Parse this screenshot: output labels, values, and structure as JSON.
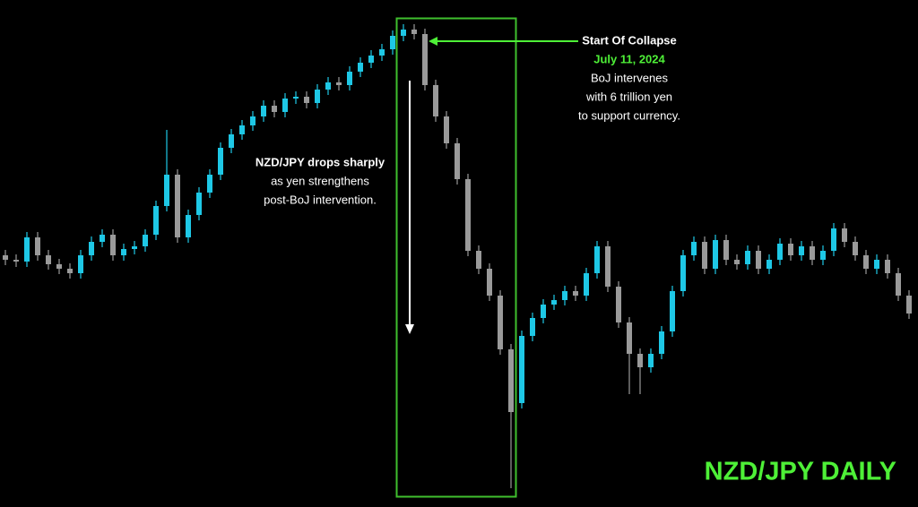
{
  "chart_data": {
    "type": "candlestick",
    "title": "NZD/JPY DAILY",
    "categories": [
      null,
      null,
      null,
      null,
      null,
      null,
      null,
      null,
      null,
      null,
      null,
      null,
      null,
      null,
      null,
      null,
      null,
      null,
      null,
      null,
      null,
      null,
      null,
      null,
      null,
      null,
      null,
      null,
      null,
      null,
      null,
      null,
      null,
      null,
      null,
      null,
      null,
      null,
      null,
      null,
      null,
      null,
      null,
      null,
      null,
      null,
      null,
      null,
      null,
      null,
      null,
      null,
      null,
      null,
      null,
      null,
      null,
      null,
      null,
      null,
      null,
      null,
      null,
      null,
      null,
      null,
      null,
      null,
      null,
      null,
      null,
      null,
      null,
      null,
      null,
      null,
      null,
      null,
      null,
      null,
      null,
      null,
      null,
      null,
      null
    ],
    "open": [
      92.875,
      92.75,
      92.7,
      93.375,
      92.875,
      92.625,
      92.5,
      92.375,
      92.875,
      93.25,
      93.45,
      92.875,
      93.05,
      93.125,
      93.45,
      94.25,
      95.125,
      93.375,
      94,
      94.625,
      95.125,
      95.875,
      96.25,
      96.5,
      96.75,
      97.05,
      96.875,
      97.25,
      97.3,
      97.125,
      97.5,
      97.7,
      97.625,
      98,
      98.25,
      98.45,
      98.625,
      99,
      99.175,
      99.05,
      97.625,
      96.75,
      96,
      95,
      93,
      92.5,
      91.75,
      90.25,
      88.75,
      90.625,
      91.125,
      91.5,
      91.625,
      91.875,
      91.75,
      92.375,
      93.125,
      92,
      91,
      90.125,
      89.75,
      90.125,
      90.75,
      91.875,
      92.875,
      93.25,
      92.5,
      93.3,
      92.75,
      92.625,
      93,
      92.5,
      92.75,
      93.2,
      92.875,
      93.125,
      92.75,
      93,
      93.625,
      93.25,
      92.875,
      92.5,
      92.75,
      92.375,
      91.75
    ],
    "high": [
      93.025,
      92.9,
      93.525,
      93.525,
      93.025,
      92.775,
      92.65,
      93.025,
      93.4,
      93.6,
      93.6,
      93.2,
      93.275,
      93.6,
      94.4,
      96.375,
      95.275,
      94.15,
      94.775,
      95.275,
      96.025,
      96.4,
      96.65,
      96.9,
      97.2,
      97.2,
      97.4,
      97.45,
      97.45,
      97.65,
      97.85,
      97.85,
      98.15,
      98.4,
      98.6,
      98.775,
      99.15,
      99.325,
      99.325,
      99.2,
      97.775,
      96.9,
      96.15,
      95.15,
      93.15,
      92.65,
      91.9,
      90.4,
      90.775,
      91.275,
      91.65,
      91.775,
      92.025,
      92.025,
      92.525,
      93.275,
      93.275,
      92.15,
      91.15,
      90.275,
      90.275,
      90.9,
      92.025,
      93.025,
      93.4,
      93.4,
      93.45,
      93.45,
      92.9,
      93.15,
      93.15,
      92.9,
      93.35,
      93.35,
      93.275,
      93.275,
      93.15,
      93.775,
      93.775,
      93.4,
      93.025,
      92.9,
      92.9,
      92.525,
      91.9
    ],
    "low": [
      92.6,
      92.55,
      92.55,
      92.725,
      92.475,
      92.35,
      92.225,
      92.225,
      92.725,
      93.1,
      92.725,
      92.725,
      92.9,
      92.975,
      93.3,
      94.1,
      93.225,
      93.225,
      93.85,
      94.475,
      94.975,
      95.725,
      96.1,
      96.35,
      96.6,
      96.725,
      96.725,
      97.1,
      96.975,
      96.975,
      97.35,
      97.475,
      97.475,
      97.85,
      98.1,
      98.3,
      98.475,
      98.85,
      98.9,
      97.475,
      96.6,
      95.85,
      94.85,
      92.85,
      92.35,
      91.6,
      90.1,
      86.375,
      88.6,
      90.475,
      90.975,
      91.35,
      91.475,
      91.6,
      91.6,
      92.225,
      91.85,
      90.85,
      89.0,
      89.0,
      89.6,
      89.975,
      90.6,
      91.725,
      92.725,
      92.35,
      92.35,
      92.6,
      92.475,
      92.475,
      92.35,
      92.35,
      92.6,
      92.725,
      92.725,
      92.6,
      92.6,
      92.85,
      93.1,
      92.725,
      92.35,
      92.35,
      92.225,
      91.6,
      91.1
    ],
    "close": [
      92.75,
      92.7,
      93.375,
      92.875,
      92.625,
      92.5,
      92.375,
      92.875,
      93.25,
      93.45,
      92.875,
      93.05,
      93.125,
      93.45,
      94.25,
      95.125,
      93.375,
      94,
      94.625,
      95.125,
      95.875,
      96.25,
      96.5,
      96.75,
      97.05,
      96.875,
      97.25,
      97.3,
      97.125,
      97.5,
      97.7,
      97.625,
      98,
      98.25,
      98.45,
      98.625,
      99,
      99.175,
      99.05,
      97.625,
      96.75,
      96,
      95,
      93,
      92.5,
      91.75,
      90.25,
      88.5,
      90.625,
      91.125,
      91.5,
      91.625,
      91.875,
      91.75,
      92.375,
      93.125,
      92,
      91,
      90.125,
      89.75,
      90.125,
      90.75,
      91.875,
      92.875,
      93.25,
      92.5,
      93.3,
      92.75,
      92.625,
      93,
      92.5,
      92.75,
      93.2,
      92.875,
      93.125,
      92.75,
      93,
      93.625,
      93.25,
      92.875,
      92.5,
      92.75,
      92.375,
      91.75,
      91.25
    ],
    "up_color": "#1ec8e6",
    "down_color": "#9a9a9a",
    "ylim": [
      85.85,
      100
    ],
    "annotations": {
      "collapse": [
        "Start Of Collapse",
        "July 11, 2024",
        "BoJ intervenes",
        "with 6 trillion yen",
        "to support currency."
      ],
      "drop": [
        "NZD/JPY drops sharply",
        "as yen strengthens",
        "post-BoJ intervention."
      ]
    }
  }
}
